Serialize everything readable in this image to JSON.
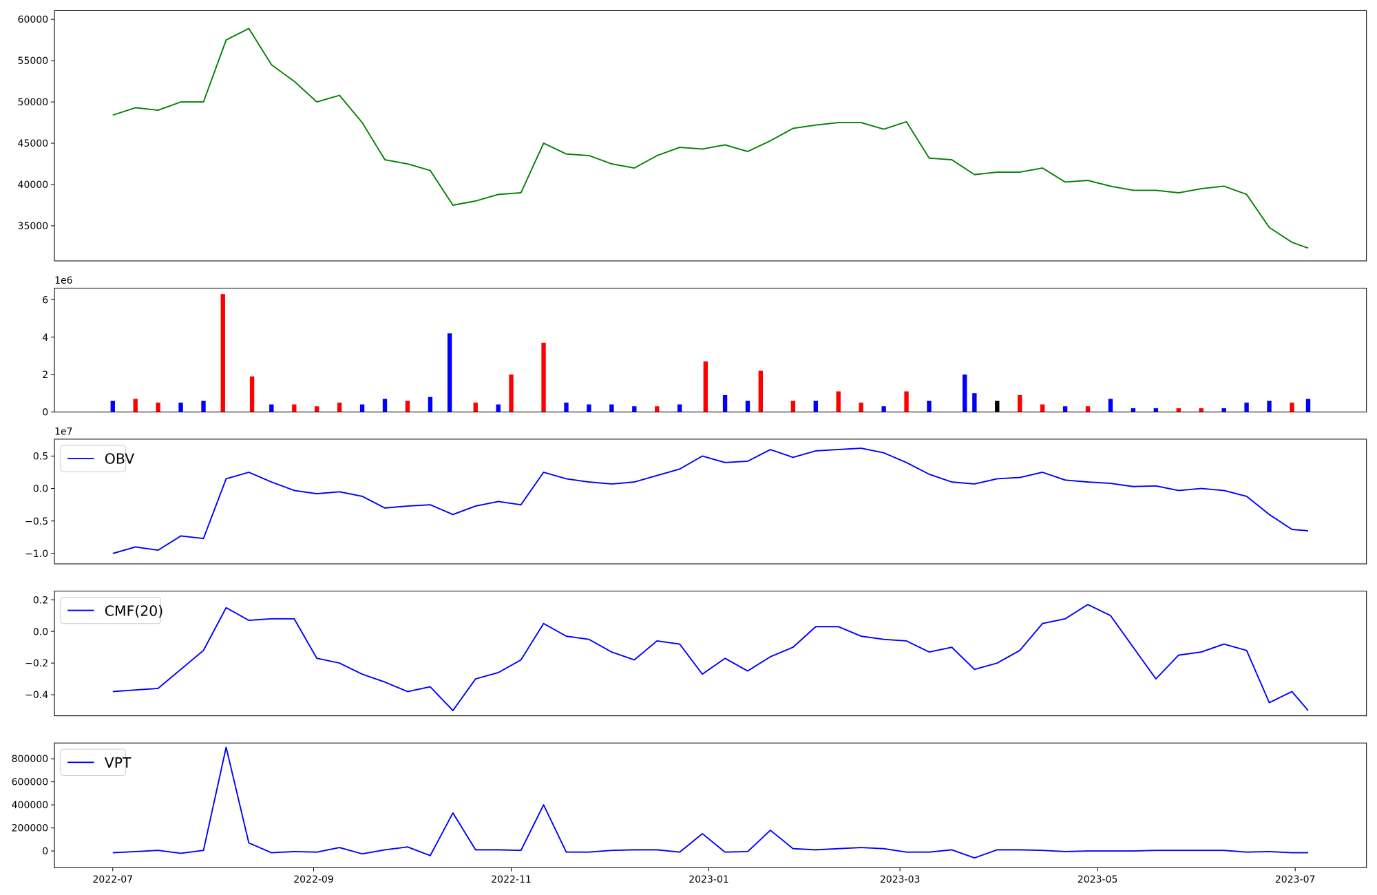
{
  "chart_data": [
    {
      "type": "line",
      "color": "#008000",
      "x": [
        0,
        7,
        14,
        21,
        28,
        35,
        42,
        49,
        56,
        63,
        70,
        77,
        84,
        91,
        98,
        105,
        112,
        119,
        126,
        133,
        140,
        147,
        154,
        161,
        168,
        175,
        182,
        189,
        196,
        203,
        210,
        217,
        224,
        231,
        238,
        245,
        252,
        259,
        266,
        273,
        280,
        287,
        294,
        301,
        308,
        315,
        322,
        329,
        336,
        343,
        350,
        357,
        364,
        369
      ],
      "values": [
        48400,
        49300,
        49000,
        50000,
        50000,
        57500,
        58900,
        54500,
        52500,
        50000,
        50800,
        47500,
        43000,
        42500,
        41700,
        37500,
        38000,
        38800,
        39000,
        45000,
        43700,
        43500,
        42500,
        42000,
        43500,
        44500,
        44300,
        44800,
        44000,
        45300,
        46800,
        47200,
        47500,
        47500,
        46700,
        47600,
        43200,
        43000,
        41200,
        41500,
        41500,
        42000,
        40300,
        40500,
        39800,
        39300,
        39300,
        39000,
        39500,
        39800,
        38800,
        34800,
        33000,
        32300
      ],
      "xlim": [
        -18,
        387
      ],
      "ylim": [
        30750,
        61060
      ],
      "yticks": [
        35000,
        40000,
        45000,
        50000,
        55000,
        60000
      ]
    },
    {
      "type": "bar",
      "offset_label": "1e6",
      "x": [
        0,
        7,
        14,
        21,
        28,
        34,
        43,
        49,
        56,
        63,
        70,
        77,
        84,
        91,
        98,
        104,
        112,
        119,
        123,
        133,
        140,
        147,
        154,
        161,
        168,
        175,
        183,
        189,
        196,
        200,
        210,
        217,
        224,
        231,
        238,
        245,
        252,
        263,
        266,
        273,
        280,
        287,
        294,
        301,
        308,
        315,
        322,
        329,
        336,
        343,
        350,
        357,
        364,
        369
      ],
      "values": [
        0.6,
        0.7,
        0.5,
        0.5,
        0.6,
        6.3,
        1.9,
        0.4,
        0.4,
        0.3,
        0.5,
        0.4,
        0.7,
        0.6,
        0.8,
        4.2,
        0.5,
        0.4,
        2.0,
        3.7,
        0.5,
        0.4,
        0.4,
        0.3,
        0.3,
        0.4,
        2.7,
        0.9,
        0.6,
        2.2,
        0.6,
        0.6,
        1.1,
        0.5,
        0.3,
        1.1,
        0.6,
        2.0,
        1.0,
        0.6,
        0.9,
        0.4,
        0.3,
        0.3,
        0.7,
        0.2,
        0.2,
        0.2,
        0.2,
        0.2,
        0.5,
        0.6,
        0.5,
        0.7
      ],
      "colors": [
        "#0000ff",
        "#ff0000",
        "#ff0000",
        "#0000ff",
        "#0000ff",
        "#ff0000",
        "#ff0000",
        "#0000ff",
        "#ff0000",
        "#ff0000",
        "#ff0000",
        "#0000ff",
        "#0000ff",
        "#ff0000",
        "#0000ff",
        "#0000ff",
        "#ff0000",
        "#0000ff",
        "#ff0000",
        "#ff0000",
        "#0000ff",
        "#0000ff",
        "#0000ff",
        "#0000ff",
        "#ff0000",
        "#0000ff",
        "#ff0000",
        "#0000ff",
        "#0000ff",
        "#ff0000",
        "#ff0000",
        "#0000ff",
        "#ff0000",
        "#ff0000",
        "#0000ff",
        "#ff0000",
        "#0000ff",
        "#0000ff",
        "#0000ff",
        "#000000",
        "#ff0000",
        "#ff0000",
        "#0000ff",
        "#ff0000",
        "#0000ff",
        "#0000ff",
        "#0000ff",
        "#ff0000",
        "#ff0000",
        "#0000ff",
        "#0000ff",
        "#0000ff",
        "#ff0000",
        "#0000ff"
      ],
      "xlim": [
        -18,
        387
      ],
      "ylim": [
        0,
        6.62
      ],
      "yticks": [
        0,
        2,
        4,
        6
      ]
    },
    {
      "type": "line",
      "offset_label": "1e7",
      "legend": "upper left",
      "x": [
        0,
        7,
        14,
        21,
        28,
        35,
        42,
        49,
        56,
        63,
        70,
        77,
        84,
        91,
        98,
        105,
        112,
        119,
        126,
        133,
        140,
        147,
        154,
        161,
        168,
        175,
        182,
        189,
        196,
        203,
        210,
        217,
        224,
        231,
        238,
        245,
        252,
        259,
        266,
        273,
        280,
        287,
        294,
        301,
        308,
        315,
        322,
        329,
        336,
        343,
        350,
        357,
        364,
        369
      ],
      "series": [
        {
          "name": "OBV",
          "color": "#0000ff",
          "values": [
            -1.0,
            -0.9,
            -0.95,
            -0.73,
            -0.77,
            0.15,
            0.25,
            0.1,
            -0.03,
            -0.08,
            -0.05,
            -0.12,
            -0.3,
            -0.27,
            -0.25,
            -0.4,
            -0.27,
            -0.2,
            -0.25,
            0.25,
            0.15,
            0.1,
            0.07,
            0.1,
            0.2,
            0.3,
            0.5,
            0.4,
            0.42,
            0.6,
            0.48,
            0.58,
            0.6,
            0.62,
            0.55,
            0.4,
            0.22,
            0.1,
            0.07,
            0.15,
            0.17,
            0.25,
            0.13,
            0.1,
            0.08,
            0.03,
            0.04,
            -0.03,
            0.0,
            -0.03,
            -0.12,
            -0.4,
            -0.63,
            -0.65
          ]
        }
      ],
      "xlim": [
        -18,
        387
      ],
      "ylim": [
        -1.16,
        0.76
      ],
      "yticks": [
        {
          "value": -1.0,
          "label": "−1.0"
        },
        {
          "value": -0.5,
          "label": "−0.5"
        },
        {
          "value": 0.0,
          "label": "0.0"
        },
        {
          "value": 0.5,
          "label": "0.5"
        }
      ]
    },
    {
      "type": "line",
      "legend": "upper left",
      "x": [
        0,
        7,
        14,
        21,
        28,
        35,
        42,
        49,
        56,
        63,
        70,
        77,
        84,
        91,
        98,
        105,
        112,
        119,
        126,
        133,
        140,
        147,
        154,
        161,
        168,
        175,
        182,
        189,
        196,
        203,
        210,
        217,
        224,
        231,
        238,
        245,
        252,
        259,
        266,
        273,
        280,
        287,
        294,
        301,
        308,
        315,
        322,
        329,
        336,
        343,
        350,
        357,
        364,
        369
      ],
      "series": [
        {
          "name": "CMF(20)",
          "color": "#0000ff",
          "values": [
            -0.38,
            -0.37,
            -0.36,
            -0.24,
            -0.12,
            0.15,
            0.07,
            0.08,
            0.08,
            -0.17,
            -0.2,
            -0.27,
            -0.32,
            -0.38,
            -0.35,
            -0.5,
            -0.3,
            -0.26,
            -0.18,
            0.05,
            -0.03,
            -0.05,
            -0.13,
            -0.18,
            -0.06,
            -0.08,
            -0.27,
            -0.17,
            -0.25,
            -0.16,
            -0.1,
            0.03,
            0.03,
            -0.03,
            -0.05,
            -0.06,
            -0.13,
            -0.1,
            -0.24,
            -0.2,
            -0.12,
            0.05,
            0.08,
            0.17,
            0.1,
            -0.1,
            -0.3,
            -0.15,
            -0.13,
            -0.08,
            -0.12,
            -0.45,
            -0.38,
            -0.5
          ]
        }
      ],
      "xlim": [
        -18,
        387
      ],
      "ylim": [
        -0.533,
        0.255
      ],
      "yticks": [
        {
          "value": -0.4,
          "label": "−0.4"
        },
        {
          "value": -0.2,
          "label": "−0.2"
        },
        {
          "value": 0.0,
          "label": "0.0"
        },
        {
          "value": 0.2,
          "label": "0.2"
        }
      ]
    },
    {
      "type": "line",
      "legend": "upper left",
      "x": [
        0,
        7,
        14,
        21,
        28,
        35,
        42,
        49,
        56,
        63,
        70,
        77,
        84,
        91,
        98,
        105,
        112,
        119,
        126,
        133,
        140,
        147,
        154,
        161,
        168,
        175,
        182,
        189,
        196,
        203,
        210,
        217,
        224,
        231,
        238,
        245,
        252,
        259,
        266,
        273,
        280,
        287,
        294,
        301,
        308,
        315,
        322,
        329,
        336,
        343,
        350,
        357,
        364,
        369
      ],
      "series": [
        {
          "name": "VPT",
          "color": "#0000ff",
          "values": [
            -15000,
            -5000,
            5000,
            -20000,
            5000,
            900000,
            70000,
            -15000,
            -5000,
            -10000,
            30000,
            -25000,
            10000,
            35000,
            -40000,
            330000,
            10000,
            10000,
            5000,
            400000,
            -10000,
            -10000,
            5000,
            10000,
            10000,
            -10000,
            150000,
            -10000,
            -5000,
            180000,
            20000,
            10000,
            20000,
            30000,
            20000,
            -10000,
            -10000,
            10000,
            -60000,
            10000,
            10000,
            5000,
            -5000,
            0,
            0,
            0,
            5000,
            5000,
            5000,
            5000,
            -10000,
            -5000,
            -15000,
            -15000
          ]
        }
      ],
      "xlim": [
        -18,
        387
      ],
      "ylim": [
        -145000,
        937000
      ],
      "yticks": [
        0,
        200000,
        400000,
        600000,
        800000
      ],
      "xticks": [
        {
          "value": 0,
          "label": "2022-07"
        },
        {
          "value": 62,
          "label": "2022-09"
        },
        {
          "value": 123,
          "label": "2022-11"
        },
        {
          "value": 184,
          "label": "2023-01"
        },
        {
          "value": 243,
          "label": "2023-03"
        },
        {
          "value": 304,
          "label": "2023-05"
        },
        {
          "value": 365,
          "label": "2023-07"
        }
      ]
    }
  ]
}
